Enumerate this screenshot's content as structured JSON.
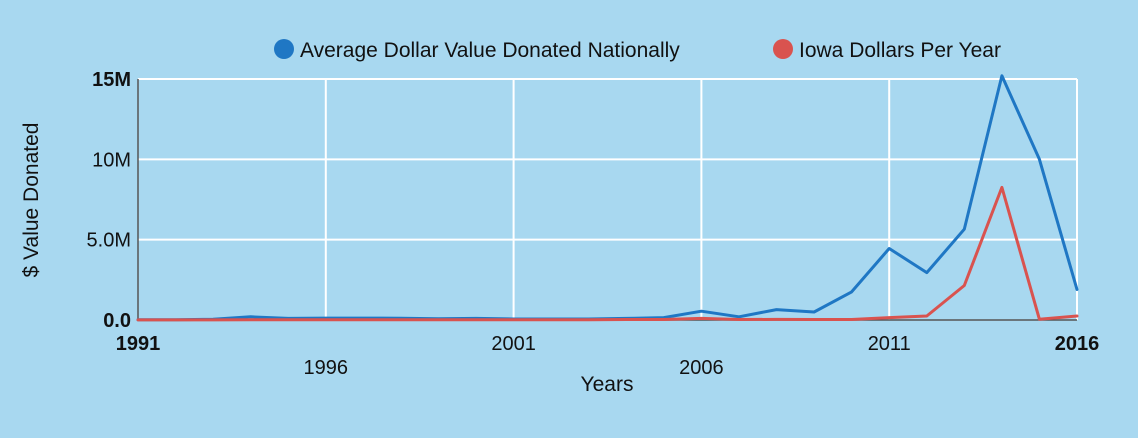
{
  "colors": {
    "background": "#a8d8f0",
    "national": "#1f77c4",
    "iowa": "#d9534f",
    "grid": "#ffffff",
    "axis": "#555555"
  },
  "chart_data": {
    "type": "line",
    "title": "",
    "xlabel": "Years",
    "ylabel": "$ Value Donated",
    "xlim": [
      1991,
      2016
    ],
    "ylim": [
      0,
      15000000
    ],
    "grid": true,
    "legend_position": "top",
    "x_ticks": [
      {
        "value": 1991,
        "label": "1991",
        "bold": true,
        "row": 1
      },
      {
        "value": 1996,
        "label": "1996",
        "bold": false,
        "row": 2
      },
      {
        "value": 2001,
        "label": "2001",
        "bold": false,
        "row": 1
      },
      {
        "value": 2006,
        "label": "2006",
        "bold": false,
        "row": 2
      },
      {
        "value": 2011,
        "label": "2011",
        "bold": false,
        "row": 1
      },
      {
        "value": 2016,
        "label": "2016",
        "bold": true,
        "row": 1
      }
    ],
    "y_ticks": [
      {
        "value": 0,
        "label": "0.0",
        "bold": true
      },
      {
        "value": 5000000,
        "label": "5.0M",
        "bold": false
      },
      {
        "value": 10000000,
        "label": "10M",
        "bold": false
      },
      {
        "value": 15000000,
        "label": "15M",
        "bold": true
      }
    ],
    "x": [
      1991,
      1992,
      1993,
      1994,
      1995,
      1996,
      1997,
      1998,
      1999,
      2000,
      2001,
      2002,
      2003,
      2004,
      2005,
      2006,
      2007,
      2008,
      2009,
      2010,
      2011,
      2012,
      2013,
      2014,
      2015,
      2016
    ],
    "series": [
      {
        "name": "Average Dollar Value Donated Nationally",
        "color": "#1f77c4",
        "values": [
          20000,
          20000,
          50000,
          200000,
          100000,
          120000,
          120000,
          110000,
          80000,
          100000,
          60000,
          60000,
          60000,
          100000,
          150000,
          550000,
          200000,
          650000,
          500000,
          1750000,
          4450000,
          2950000,
          5650000,
          15200000,
          10000000,
          1900000
        ]
      },
      {
        "name": "Iowa Dollars Per Year",
        "color": "#d9534f",
        "values": [
          5000,
          5000,
          5000,
          10000,
          10000,
          10000,
          10000,
          10000,
          10000,
          10000,
          10000,
          10000,
          20000,
          30000,
          30000,
          100000,
          30000,
          40000,
          30000,
          30000,
          150000,
          250000,
          2150000,
          8250000,
          50000,
          250000
        ]
      }
    ]
  }
}
